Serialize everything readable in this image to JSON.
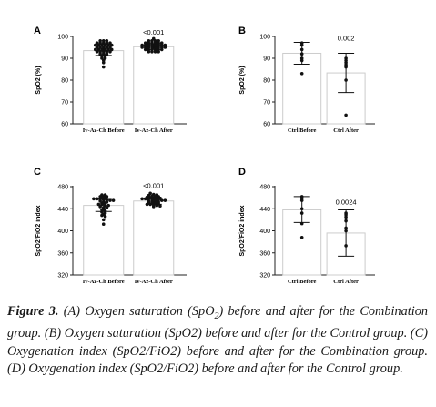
{
  "figure": {
    "panels": [
      {
        "letter": "A",
        "ylabel": "SpO2 (%)",
        "ylim": [
          60,
          100
        ],
        "yticks": [
          "60",
          "70",
          "80",
          "90",
          "100"
        ],
        "pvalue": "<0.001",
        "groups": [
          {
            "name": "Iv-Az-Ch Before",
            "mean": 93.5,
            "err": [
              91.3,
              95.7
            ],
            "points": [
              98,
              98,
              98,
              97,
              97,
              97,
              97,
              97,
              96,
              96,
              96,
              96,
              96,
              96,
              95,
              95,
              95,
              95,
              95,
              94,
              94,
              94,
              94,
              94,
              94,
              93,
              93,
              93,
              93,
              93,
              92,
              92,
              92,
              91,
              91,
              90,
              90,
              89,
              88,
              86
            ]
          },
          {
            "name": "Iv-Az-Ch After",
            "mean": 95.3,
            "err": [
              94.1,
              96.6
            ],
            "points": [
              99,
              98,
              98,
              98,
              98,
              97,
              97,
              97,
              97,
              97,
              97,
              96,
              96,
              96,
              96,
              96,
              96,
              96,
              96,
              95,
              95,
              95,
              95,
              95,
              95,
              95,
              95,
              94,
              94,
              94,
              94,
              94,
              94,
              93,
              93,
              93,
              93
            ]
          }
        ]
      },
      {
        "letter": "B",
        "ylabel": "SpO2 (%)",
        "ylim": [
          60,
          100
        ],
        "yticks": [
          "60",
          "70",
          "80",
          "90",
          "100"
        ],
        "pvalue": "0.002",
        "groups": [
          {
            "name": "Ctrl Before",
            "mean": 92.3,
            "err": [
              87.3,
              97.3
            ],
            "points": [
              97,
              96,
              94,
              92,
              90,
              89,
              83
            ]
          },
          {
            "name": "Ctrl After",
            "mean": 83.3,
            "err": [
              74.3,
              92.3
            ],
            "points": [
              90,
              89,
              88,
              87,
              86,
              80,
              64
            ]
          }
        ]
      },
      {
        "letter": "C",
        "ylabel": "SpO2/FiO2 index",
        "ylim": [
          320,
          480
        ],
        "yticks": [
          "320",
          "360",
          "400",
          "440",
          "480"
        ],
        "pvalue": "<0.001",
        "groups": [
          {
            "name": "Iv-Az-Ch Before",
            "mean": 446,
            "err": [
              435,
              457
            ],
            "points": [
              465,
              465,
              462,
              462,
              462,
              460,
              460,
              458,
              458,
              458,
              456,
              456,
              455,
              455,
              454,
              452,
              452,
              450,
              450,
              448,
              448,
              446,
              446,
              444,
              442,
              442,
              440,
              438,
              436,
              434,
              432,
              430,
              428,
              426,
              420,
              412
            ]
          },
          {
            "name": "Iv-Az-Ch After",
            "mean": 454,
            "err": [
              448,
              460
            ],
            "points": [
              468,
              466,
              465,
              464,
              463,
              462,
              462,
              461,
              460,
              460,
              460,
              459,
              458,
              458,
              458,
              457,
              456,
              456,
              455,
              455,
              454,
              453,
              452,
              452,
              451,
              450,
              450,
              449,
              448,
              448,
              447,
              446,
              445,
              444
            ]
          }
        ]
      },
      {
        "letter": "D",
        "ylabel": "SpO2/FiO2 index",
        "ylim": [
          320,
          480
        ],
        "yticks": [
          "320",
          "360",
          "400",
          "440",
          "480"
        ],
        "pvalue": "0.0024",
        "groups": [
          {
            "name": "Ctrl Before",
            "mean": 438,
            "err": [
              415,
              462
            ],
            "points": [
              462,
              459,
              455,
              440,
              432,
              413,
              388
            ]
          },
          {
            "name": "Ctrl After",
            "mean": 396,
            "err": [
              354,
              438
            ],
            "points": [
              432,
              429,
              425,
              418,
              405,
              400,
              373
            ]
          }
        ]
      }
    ]
  },
  "caption": {
    "label": "Figure 3.",
    "text_a": " (A) Oxygen saturation (SpO",
    "sub": "2",
    "text_b": ") before and after for the Combination group. (B) Oxygen saturation (SpO2) before and after for the Control group. (C) Oxygenation index (SpO2/FiO2) before and after for the Combination group. (D) Oxygenation index (SpO2/FiO2) before and after for the Control group."
  },
  "colors": {
    "bar_fill": "#ffffff",
    "bar_stroke": "#cccccc",
    "point": "#111111",
    "axis": "#222222"
  }
}
